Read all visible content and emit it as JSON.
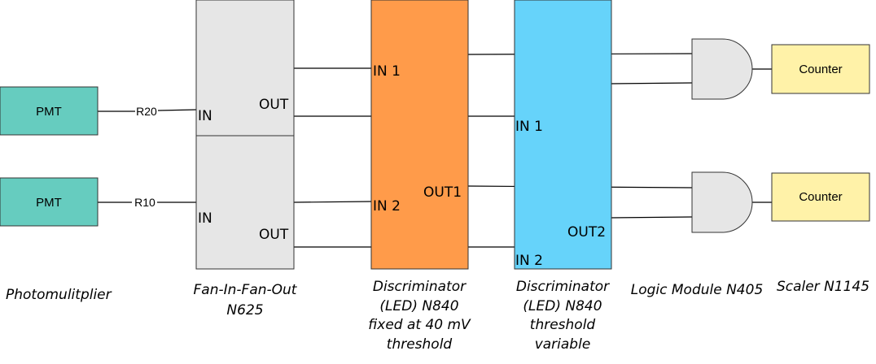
{
  "colors": {
    "pmt_fill": "#66ccbf",
    "fanio_fill": "#e6e6e6",
    "disc_fixed_fill": "#ff9b4a",
    "disc_var_fill": "#66d3fa",
    "and_gate_fill": "#e6e6e6",
    "counter_fill": "#fff2a8",
    "stroke": "#333333"
  },
  "pmt_top": {
    "label": "PMT",
    "resistor": "R20"
  },
  "pmt_bottom": {
    "label": "PMT",
    "resistor": "R10"
  },
  "fanio_top": {
    "in": "IN",
    "out": "OUT"
  },
  "fanio_bottom": {
    "in": "IN",
    "out": "OUT"
  },
  "disc_fixed": {
    "in1": "IN 1",
    "in2": "IN 2",
    "out1": "OUT1"
  },
  "disc_var": {
    "in1": "IN 1",
    "in2": "IN 2",
    "out2": "OUT2"
  },
  "logic": {
    "gate_top": "and-gate",
    "gate_bottom": "and-gate"
  },
  "counter_top": {
    "label": "Counter"
  },
  "counter_bottom": {
    "label": "Counter"
  },
  "captions": {
    "pmt": "Photomulitplier",
    "fanio": [
      "Fan-In-Fan-Out",
      "N625"
    ],
    "disc_fixed": [
      "Discriminator",
      "(LED) N840",
      "fixed at 40 mV",
      "threshold"
    ],
    "disc_var": [
      "Discriminator",
      "(LED) N840",
      "threshold",
      "variable"
    ],
    "logic": "Logic Module N405",
    "scaler": "Scaler N1145"
  }
}
